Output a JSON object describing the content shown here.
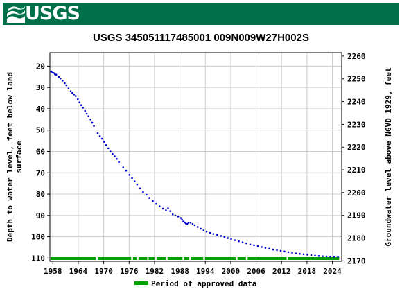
{
  "header": {
    "logo_text": "USGS",
    "color": "#00704a"
  },
  "chart_data": {
    "type": "scatter",
    "title": "USGS 345051117485001 009N009W27H002S",
    "ylabel_left": "Depth to water level, feet below land surface",
    "ylabel_right": "Groundwater level above NGVD 1929, feet",
    "xlim": [
      1957.3,
      2026.2
    ],
    "ylim_left": [
      13.7,
      111.5
    ],
    "ylim_right": [
      2169.8,
      2261.5
    ],
    "x_ticks": [
      1958,
      1964,
      1970,
      1976,
      1982,
      1988,
      1994,
      2000,
      2006,
      2012,
      2018,
      2024
    ],
    "y_ticks_left": [
      20,
      30,
      40,
      50,
      60,
      70,
      80,
      90,
      100,
      110
    ],
    "y_ticks_right": [
      2170,
      2180,
      2190,
      2200,
      2210,
      2220,
      2230,
      2240,
      2250,
      2260
    ],
    "grid": true,
    "series_color": "#0000cc",
    "points": [
      [
        1957.6,
        22.5
      ],
      [
        1957.9,
        23.0
      ],
      [
        1958.2,
        23.2
      ],
      [
        1958.5,
        23.8
      ],
      [
        1958.8,
        24.0
      ],
      [
        1959.4,
        25.0
      ],
      [
        1959.8,
        25.8
      ],
      [
        1960.3,
        26.8
      ],
      [
        1960.8,
        28.0
      ],
      [
        1961.2,
        29.0
      ],
      [
        1961.7,
        30.5
      ],
      [
        1962.2,
        31.8
      ],
      [
        1962.6,
        32.6
      ],
      [
        1963.0,
        33.3
      ],
      [
        1963.4,
        34.0
      ],
      [
        1963.9,
        35.5
      ],
      [
        1964.3,
        37.0
      ],
      [
        1964.7,
        38.3
      ],
      [
        1965.1,
        39.5
      ],
      [
        1965.6,
        41.0
      ],
      [
        1966.0,
        42.3
      ],
      [
        1966.4,
        43.5
      ],
      [
        1966.9,
        45.0
      ],
      [
        1967.3,
        46.5
      ],
      [
        1967.7,
        48.0
      ],
      [
        1968.6,
        51.5
      ],
      [
        1969.1,
        52.8
      ],
      [
        1969.6,
        54.0
      ],
      [
        1970.1,
        55.5
      ],
      [
        1970.6,
        57.0
      ],
      [
        1971.1,
        58.5
      ],
      [
        1971.6,
        60.0
      ],
      [
        1972.1,
        61.2
      ],
      [
        1972.6,
        62.3
      ],
      [
        1973.1,
        63.5
      ],
      [
        1973.6,
        65.0
      ],
      [
        1974.6,
        67.5
      ],
      [
        1975.3,
        69.0
      ],
      [
        1976.1,
        71.0
      ],
      [
        1976.7,
        72.5
      ],
      [
        1977.3,
        74.0
      ],
      [
        1977.9,
        75.5
      ],
      [
        1978.6,
        77.3
      ],
      [
        1979.3,
        79.0
      ],
      [
        1980.1,
        80.3
      ],
      [
        1980.8,
        81.8
      ],
      [
        1981.6,
        83.3
      ],
      [
        1982.4,
        84.6
      ],
      [
        1983.2,
        85.7
      ],
      [
        1984.0,
        86.8
      ],
      [
        1984.7,
        87.6
      ],
      [
        1985.2,
        86.6
      ],
      [
        1985.7,
        88.0
      ],
      [
        1986.3,
        89.5
      ],
      [
        1986.9,
        90.0
      ],
      [
        1987.6,
        90.5
      ],
      [
        1988.2,
        91.2
      ],
      [
        1988.5,
        92.0
      ],
      [
        1988.8,
        92.8
      ],
      [
        1989.1,
        93.3
      ],
      [
        1989.4,
        93.8
      ],
      [
        1989.7,
        94.0
      ],
      [
        1990.0,
        93.5
      ],
      [
        1990.5,
        93.4
      ],
      [
        1991.0,
        94.0
      ],
      [
        1991.5,
        94.6
      ],
      [
        1992.2,
        95.4
      ],
      [
        1992.9,
        96.2
      ],
      [
        1993.6,
        97.0
      ],
      [
        1994.3,
        97.6
      ],
      [
        1995.1,
        98.2
      ],
      [
        1995.9,
        98.7
      ],
      [
        1996.8,
        99.1
      ],
      [
        1997.7,
        99.6
      ],
      [
        1998.5,
        100.1
      ],
      [
        1999.3,
        100.6
      ],
      [
        2000.1,
        101.1
      ],
      [
        2001.0,
        101.6
      ],
      [
        2001.9,
        102.1
      ],
      [
        2002.8,
        102.6
      ],
      [
        2003.7,
        103.1
      ],
      [
        2004.6,
        103.6
      ],
      [
        2005.5,
        104.0
      ],
      [
        2006.4,
        104.4
      ],
      [
        2007.3,
        104.8
      ],
      [
        2008.2,
        105.2
      ],
      [
        2009.1,
        105.6
      ],
      [
        2010.0,
        106.0
      ],
      [
        2010.9,
        106.3
      ],
      [
        2011.8,
        106.6
      ],
      [
        2012.7,
        106.9
      ],
      [
        2013.6,
        107.2
      ],
      [
        2014.5,
        107.5
      ],
      [
        2015.4,
        107.8
      ],
      [
        2016.3,
        108.0
      ],
      [
        2017.2,
        108.2
      ],
      [
        2018.1,
        108.4
      ],
      [
        2019.0,
        108.6
      ],
      [
        2019.9,
        108.8
      ],
      [
        2020.8,
        109.0
      ],
      [
        2021.7,
        109.1
      ],
      [
        2022.6,
        109.2
      ],
      [
        2023.5,
        109.3
      ],
      [
        2024.4,
        109.4
      ],
      [
        2025.3,
        109.4
      ]
    ],
    "approved_periods": [
      [
        1957.5,
        1968.1
      ],
      [
        1968.6,
        1976.5
      ],
      [
        1976.9,
        1977.8
      ],
      [
        1978.2,
        1980.3
      ],
      [
        1980.6,
        1982.0
      ],
      [
        1982.5,
        1984.7
      ],
      [
        1985.1,
        1988.6
      ],
      [
        1989.0,
        1990.2
      ],
      [
        1990.6,
        1993.5
      ],
      [
        1993.9,
        2001.2
      ],
      [
        2001.6,
        2003.6
      ],
      [
        2004.0,
        2013.2
      ],
      [
        2013.6,
        2025.6
      ]
    ],
    "approved_color": "#00a000",
    "legend": {
      "label": "Period of approved data",
      "placement": "bottom-center"
    }
  }
}
